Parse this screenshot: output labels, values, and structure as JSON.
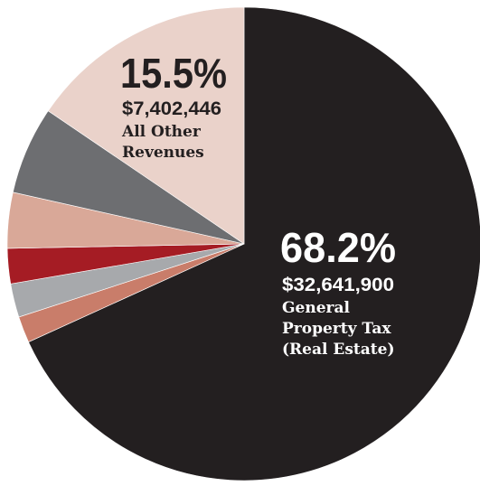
{
  "chart_data": {
    "type": "pie",
    "slices": [
      {
        "value": 68.2,
        "color": "#231f20",
        "pct": "68.2%",
        "amount": "$32,641,900",
        "label_lines": [
          "General",
          "Property Tax",
          "(Real Estate)"
        ],
        "text_color": "#ffffff"
      },
      {
        "value": 1.8,
        "color": "#c97d6a"
      },
      {
        "value": 2.3,
        "color": "#a7a9ac"
      },
      {
        "value": 2.4,
        "color": "#a51c24"
      },
      {
        "value": 3.8,
        "color": "#d9a898"
      },
      {
        "value": 6.0,
        "color": "#6d6e71"
      },
      {
        "value": 15.5,
        "color": "#ead2ca",
        "pct": "15.5%",
        "amount": "$7,402,446",
        "label_lines": [
          "All Other",
          "Revenues"
        ],
        "text_color": "#231f20"
      }
    ],
    "start_angle_deg": 0,
    "direction": "clockwise"
  }
}
